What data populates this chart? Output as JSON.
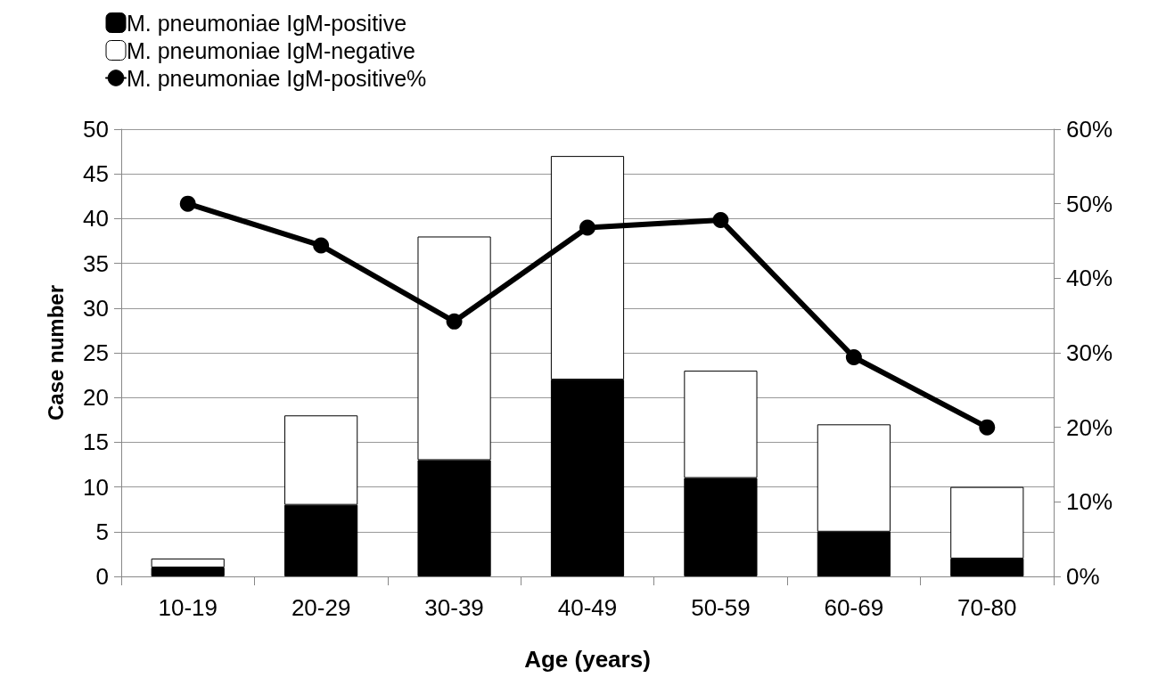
{
  "chart_data": {
    "type": "bar",
    "stacked": true,
    "xlabel": "Age (years)",
    "ylabel": "Case number",
    "categories": [
      "10-19",
      "20-29",
      "30-39",
      "40-49",
      "50-59",
      "60-69",
      "70-80"
    ],
    "series": [
      {
        "name": "M. pneumoniae IgM-positive",
        "color": "#000000",
        "values": [
          1,
          8,
          13,
          22,
          11,
          5,
          2
        ]
      },
      {
        "name": "M. pneumoniae IgM-negative",
        "color": "#ffffff",
        "values": [
          1,
          10,
          25,
          25,
          12,
          12,
          8
        ]
      },
      {
        "name": "M. pneumoniae IgM-positive%",
        "type": "line",
        "axis": "y2",
        "color": "#000000",
        "values": [
          50,
          44.4,
          34.2,
          46.8,
          47.8,
          29.4,
          20
        ]
      }
    ],
    "ylim": [
      0,
      50
    ],
    "yticks": [
      0,
      5,
      10,
      15,
      20,
      25,
      30,
      35,
      40,
      45,
      50
    ],
    "y2lim": [
      0,
      60
    ],
    "y2ticks": [
      {
        "value": 0,
        "label": "0%"
      },
      {
        "value": 10,
        "label": "10%"
      },
      {
        "value": 20,
        "label": "20%"
      },
      {
        "value": 30,
        "label": "30%"
      },
      {
        "value": 40,
        "label": "40%"
      },
      {
        "value": 50,
        "label": "50%"
      },
      {
        "value": 60,
        "label": "60%"
      }
    ],
    "grid": "y",
    "legend": "top left",
    "marker": "circle",
    "line_style": "solid"
  }
}
